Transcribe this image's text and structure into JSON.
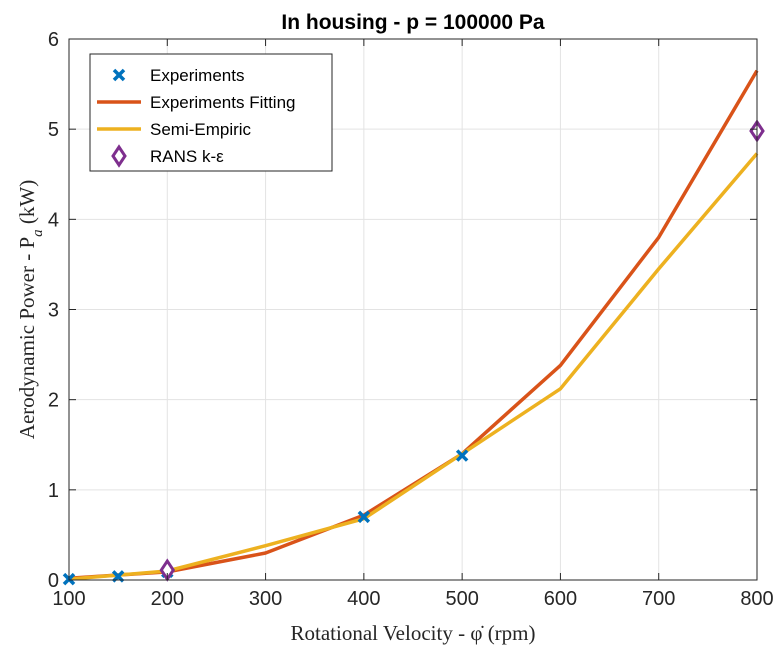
{
  "chart_data": {
    "type": "line",
    "title": "In housing - p = 100000 Pa",
    "xlabel": "Rotational Velocity - φ̇ (rpm)",
    "ylabel": "Aerodynamic Power - P",
    "ylabel_sub": "a",
    "ylabel_unit": " (kW)",
    "xlim": [
      100,
      800
    ],
    "ylim": [
      0,
      6
    ],
    "xticks": [
      "100",
      "200",
      "300",
      "400",
      "500",
      "600",
      "700",
      "800"
    ],
    "yticks": [
      "0",
      "1",
      "2",
      "3",
      "4",
      "5",
      "6"
    ],
    "grid": true,
    "legend_position": "top-left",
    "series": [
      {
        "name": "Experiments",
        "kind": "markers-x",
        "color": "#0072BD",
        "x": [
          100,
          150,
          200,
          400,
          500
        ],
        "y": [
          0.01,
          0.04,
          0.09,
          0.7,
          1.38
        ]
      },
      {
        "name": "Experiments Fitting",
        "kind": "line",
        "color": "#D95319",
        "x": [
          100,
          200,
          300,
          400,
          500,
          600,
          700,
          800
        ],
        "y": [
          0.02,
          0.09,
          0.3,
          0.72,
          1.4,
          2.38,
          3.8,
          5.65
        ]
      },
      {
        "name": "Semi-Empiric",
        "kind": "line",
        "color": "#EDB120",
        "x": [
          100,
          200,
          300,
          400,
          500,
          600,
          700,
          800
        ],
        "y": [
          0.01,
          0.1,
          0.38,
          0.68,
          1.4,
          2.12,
          3.45,
          4.73
        ]
      },
      {
        "name": "RANS k-ε",
        "kind": "markers-diamond",
        "color": "#7E2F8E",
        "x": [
          200,
          800
        ],
        "y": [
          0.11,
          4.98
        ]
      }
    ]
  }
}
